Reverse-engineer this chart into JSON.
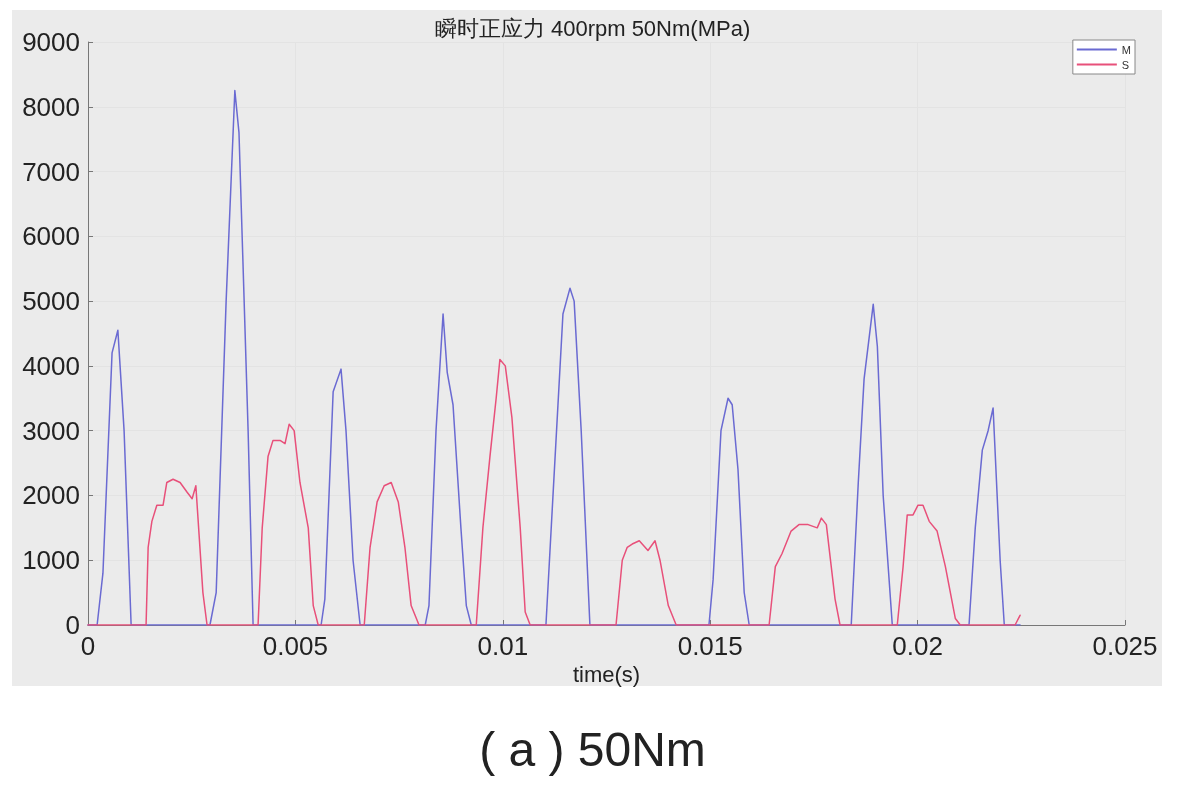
{
  "chart_data": {
    "type": "line",
    "title": "瞬时正应力 400rpm 50Nm(MPa)",
    "xlabel": "time(s)",
    "annotations": [
      "( a ) 50Nm"
    ],
    "xlim": [
      0,
      0.025
    ],
    "xticks": [
      0,
      0.005,
      0.01,
      0.015,
      0.02,
      0.025
    ],
    "ylim": [
      0,
      9000
    ],
    "yticks": [
      0,
      1000,
      2000,
      3000,
      4000,
      5000,
      6000,
      7000,
      8000,
      9000
    ],
    "grid": true,
    "legend": "top right",
    "marker": "none",
    "line_style": "solid",
    "series": [
      {
        "name": "M",
        "color": "#6a6ad2",
        "x": [
          0,
          0.00022,
          0.00036,
          0.00058,
          0.00072,
          0.00087,
          0.00104,
          0.00294,
          0.00309,
          0.00333,
          0.00354,
          0.00364,
          0.00386,
          0.00398,
          0.00562,
          0.00571,
          0.00591,
          0.0061,
          0.00622,
          0.00639,
          0.00656,
          0.00813,
          0.00822,
          0.00839,
          0.00856,
          0.00866,
          0.0088,
          0.00899,
          0.00912,
          0.00924,
          0.01104,
          0.01121,
          0.01145,
          0.01162,
          0.01172,
          0.01189,
          0.0121,
          0.01497,
          0.01507,
          0.01526,
          0.01543,
          0.01553,
          0.01567,
          0.01582,
          0.01594,
          0.0184,
          0.01857,
          0.01871,
          0.01893,
          0.01903,
          0.01917,
          0.01939,
          0.02124,
          0.02139,
          0.02156,
          0.0217,
          0.02182,
          0.02199,
          0.02209,
          0.02247
        ],
        "values": [
          0,
          0,
          800,
          4200,
          4550,
          3000,
          0,
          0,
          500,
          5000,
          8250,
          7600,
          3000,
          0,
          0,
          400,
          3600,
          3950,
          3000,
          1000,
          0,
          0,
          300,
          3000,
          4800,
          3900,
          3400,
          1500,
          300,
          0,
          0,
          2000,
          4800,
          5200,
          5000,
          3000,
          0,
          0,
          700,
          3000,
          3500,
          3400,
          2400,
          500,
          0,
          0,
          2200,
          3800,
          4950,
          4300,
          2000,
          0,
          0,
          1500,
          2700,
          3000,
          3350,
          1000,
          0,
          0
        ]
      },
      {
        "name": "S",
        "color": "#e8507a",
        "x": [
          0,
          0.0014,
          0.00145,
          0.00154,
          0.00166,
          0.00181,
          0.0019,
          0.00205,
          0.00222,
          0.00239,
          0.00251,
          0.0026,
          0.00277,
          0.00287,
          0.0041,
          0.0042,
          0.00434,
          0.00446,
          0.00463,
          0.00475,
          0.00485,
          0.00497,
          0.00511,
          0.00531,
          0.00543,
          0.00555,
          0.00666,
          0.0068,
          0.00697,
          0.00714,
          0.00731,
          0.00748,
          0.00764,
          0.00779,
          0.00798,
          0.00936,
          0.00952,
          0.00969,
          0.00984,
          0.00993,
          0.01006,
          0.01022,
          0.01042,
          0.01054,
          0.01066,
          0.01273,
          0.01288,
          0.013,
          0.01312,
          0.01329,
          0.0135,
          0.01367,
          0.01379,
          0.01399,
          0.01418,
          0.01642,
          0.01657,
          0.01673,
          0.01695,
          0.01714,
          0.01736,
          0.01758,
          0.01768,
          0.0178,
          0.01801,
          0.01813,
          0.01951,
          0.01965,
          0.01975,
          0.01989,
          0.02001,
          0.02013,
          0.02028,
          0.02047,
          0.02067,
          0.02091,
          0.02103,
          0.02235,
          0.02247
        ],
        "values": [
          0,
          0,
          1200,
          1600,
          1850,
          1850,
          2200,
          2250,
          2200,
          2050,
          1950,
          2150,
          500,
          0,
          0,
          1500,
          2600,
          2850,
          2850,
          2800,
          3100,
          3000,
          2200,
          1500,
          300,
          0,
          0,
          1200,
          1900,
          2150,
          2200,
          1900,
          1200,
          300,
          0,
          0,
          1500,
          2600,
          3500,
          4100,
          4000,
          3200,
          1500,
          200,
          0,
          0,
          1000,
          1200,
          1250,
          1300,
          1150,
          1300,
          1000,
          300,
          0,
          0,
          900,
          1100,
          1450,
          1550,
          1550,
          1500,
          1650,
          1550,
          400,
          0,
          0,
          900,
          1700,
          1700,
          1850,
          1850,
          1600,
          1450,
          900,
          100,
          0,
          0,
          150
        ]
      }
    ]
  }
}
